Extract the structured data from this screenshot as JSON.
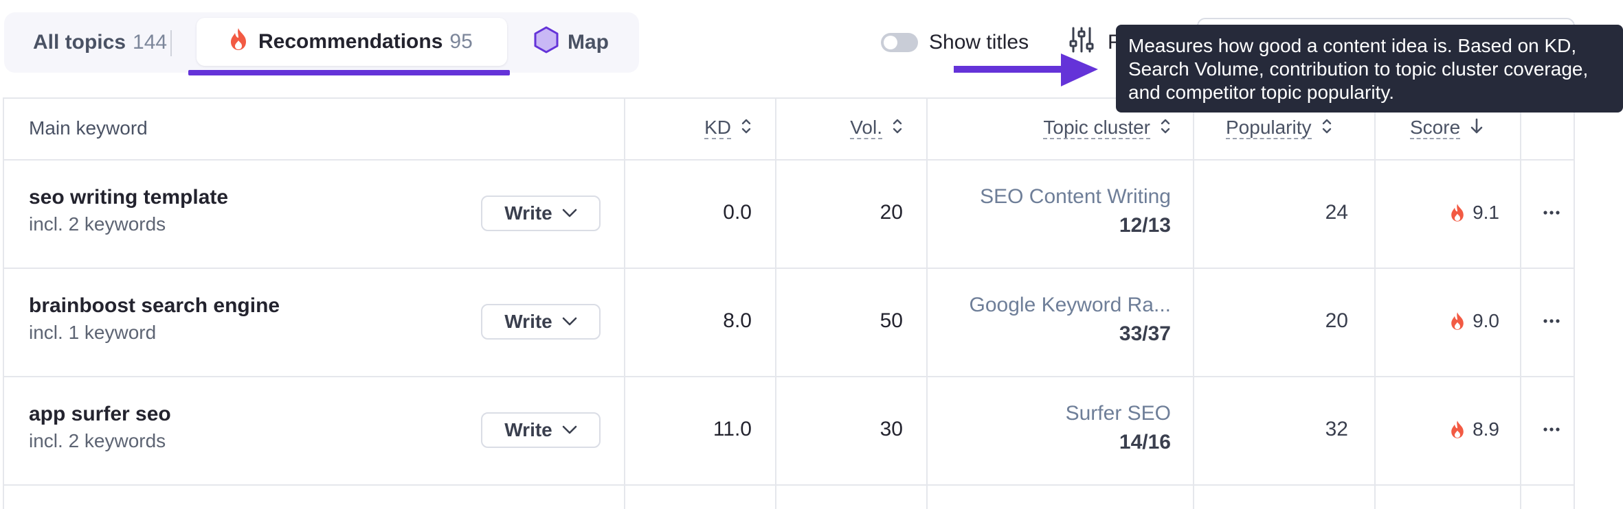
{
  "tabs": {
    "all": {
      "label": "All topics",
      "count": "144"
    },
    "recommendations": {
      "label": "Recommendations",
      "count": "95"
    },
    "map": {
      "label": "Map"
    }
  },
  "toolbar": {
    "show_titles_label": "Show titles",
    "show_titles_on": false,
    "filter_label": "F"
  },
  "tooltip": {
    "text": "Measures how good a content idea is. Based on KD, Search Volume, contribution to topic cluster coverage, and competitor topic popularity."
  },
  "table": {
    "headers": {
      "main_keyword": "Main keyword",
      "kd": "KD",
      "vol": "Vol.",
      "topic_cluster": "Topic cluster",
      "popularity": "Popularity",
      "score": "Score"
    },
    "rows": [
      {
        "keyword": "seo writing template",
        "sub": "incl. 2 keywords",
        "action": "Write",
        "kd": "0.0",
        "vol": "20",
        "cluster": "SEO Content Writing",
        "coverage": "12/13",
        "popularity": "24",
        "score": "9.1"
      },
      {
        "keyword": "brainboost search engine",
        "sub": "incl. 1 keyword",
        "action": "Write",
        "kd": "8.0",
        "vol": "50",
        "cluster": "Google Keyword Ra...",
        "coverage": "33/37",
        "popularity": "20",
        "score": "9.0"
      },
      {
        "keyword": "app surfer seo",
        "sub": "incl. 2 keywords",
        "action": "Write",
        "kd": "11.0",
        "vol": "30",
        "cluster": "Surfer SEO",
        "coverage": "14/16",
        "popularity": "32",
        "score": "8.9"
      }
    ]
  },
  "colors": {
    "accent": "#6433d8",
    "flame": "#f25a43",
    "tooltip_bg": "#262a3a"
  }
}
